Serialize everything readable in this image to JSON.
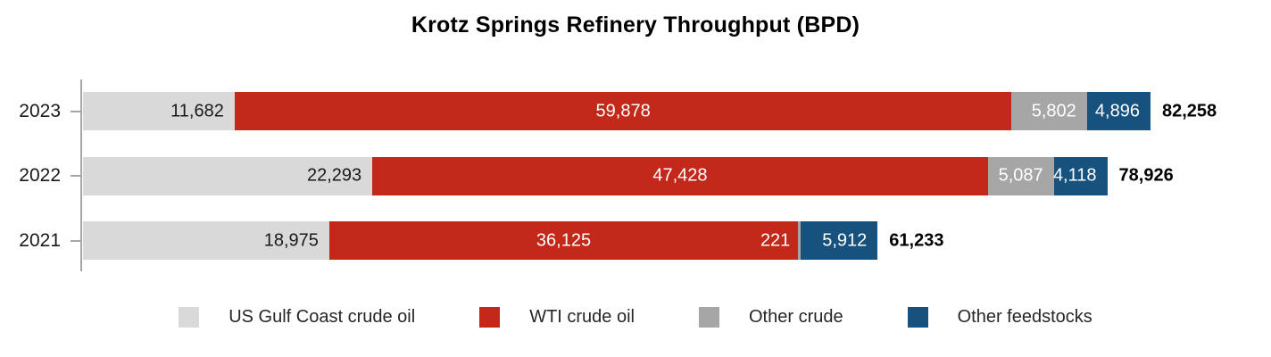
{
  "title": "Krotz Springs Refinery Throughput (BPD)",
  "chart_data": {
    "type": "bar",
    "orientation": "horizontal",
    "stacked": true,
    "title": "Krotz Springs Refinery Throughput (BPD)",
    "categories": [
      "2023",
      "2022",
      "2021"
    ],
    "series": [
      {
        "name": "US Gulf Coast crude oil",
        "color": "#d9d9d9",
        "label_color": "#1a1a1a",
        "label_align": "end",
        "values": [
          11682,
          22293,
          18975
        ]
      },
      {
        "name": "WTI crude oil",
        "color": "#c2291a",
        "label_color": "#ffffff",
        "label_align": "center",
        "values": [
          59878,
          47428,
          36125
        ]
      },
      {
        "name": "Other crude",
        "color": "#a6a6a6",
        "label_color": "#ffffff",
        "label_align": "end",
        "values": [
          5802,
          5087,
          221
        ]
      },
      {
        "name": "Other feedstocks",
        "color": "#17517e",
        "label_color": "#ffffff",
        "label_align": "end",
        "values": [
          4896,
          4118,
          5912
        ]
      }
    ],
    "totals": [
      82258,
      78926,
      61233
    ],
    "value_format": "thousands-comma",
    "xlim": [
      0,
      82258
    ],
    "grid": false,
    "legend_position": "bottom",
    "axis_color": "#a6a6a6"
  }
}
